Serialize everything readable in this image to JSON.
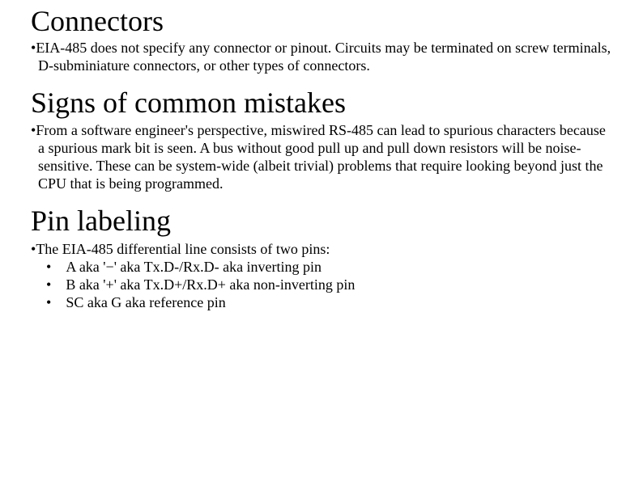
{
  "sections": [
    {
      "heading": "Connectors",
      "body": "EIA-485 does not specify any connector or pinout. Circuits may be terminated on screw terminals, D-subminiature connectors, or other types of connectors."
    },
    {
      "heading": "Signs of common mistakes",
      "body": "From a software engineer's perspective, miswired RS-485 can lead to spurious characters because a spurious mark bit is seen. A bus without good pull up and pull down resistors will be noise-sensitive. These can be system-wide (albeit trivial) problems that require looking beyond just the CPU that is being programmed."
    },
    {
      "heading": "Pin labeling",
      "body": "The EIA-485 differential line consists of two pins:",
      "items": [
        "A aka '−' aka Tx.D-/Rx.D- aka inverting pin",
        "B aka '+' aka Tx.D+/Rx.D+ aka non-inverting pin",
        "SC aka G aka reference pin"
      ]
    }
  ],
  "bullet_char": "•"
}
